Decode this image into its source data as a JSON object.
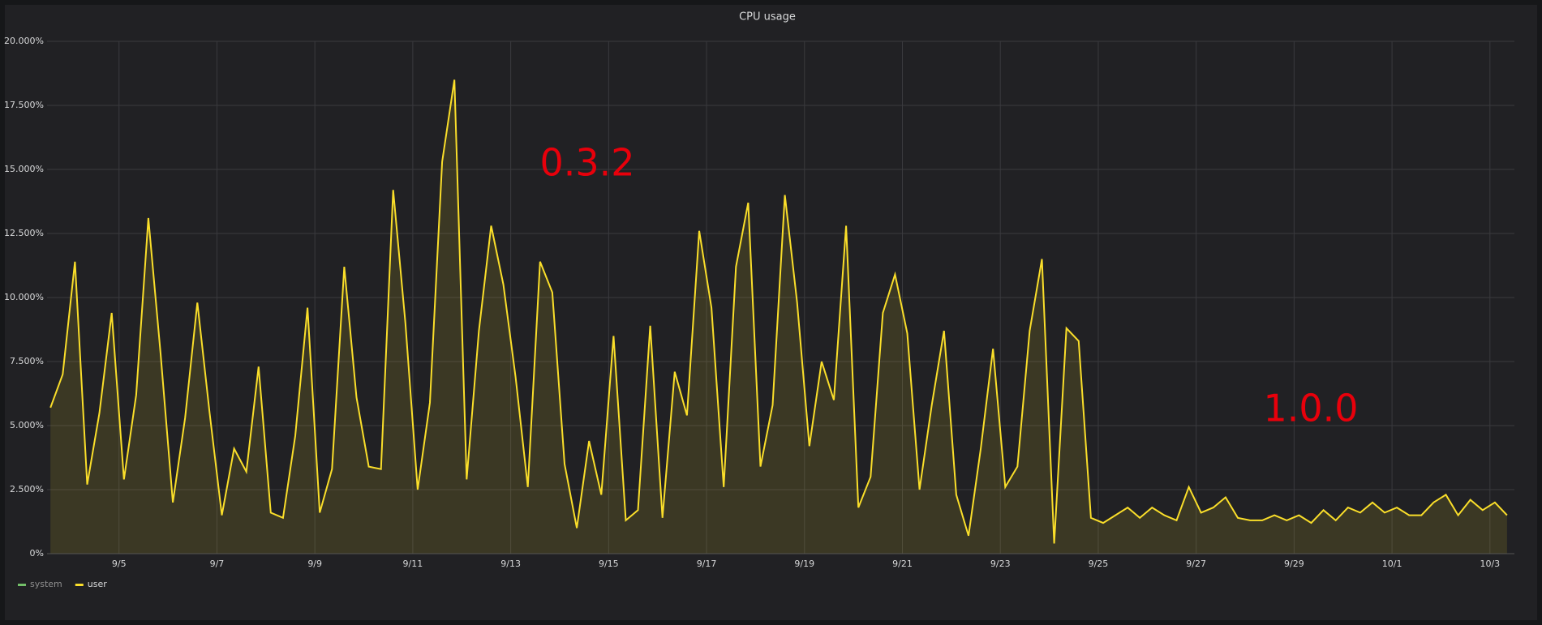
{
  "chart_data": {
    "type": "line",
    "title": "CPU usage",
    "annotations": [
      "0.3.2",
      "1.0.0"
    ],
    "xlim": [
      3.53,
      33.5
    ],
    "xticks": [
      {
        "value": 5,
        "label": "9/5"
      },
      {
        "value": 7,
        "label": "9/7"
      },
      {
        "value": 9,
        "label": "9/9"
      },
      {
        "value": 11,
        "label": "9/11"
      },
      {
        "value": 13,
        "label": "9/13"
      },
      {
        "value": 15,
        "label": "9/15"
      },
      {
        "value": 17,
        "label": "9/17"
      },
      {
        "value": 19,
        "label": "9/19"
      },
      {
        "value": 21,
        "label": "9/21"
      },
      {
        "value": 23,
        "label": "9/23"
      },
      {
        "value": 25,
        "label": "9/25"
      },
      {
        "value": 27,
        "label": "9/27"
      },
      {
        "value": 29,
        "label": "9/29"
      },
      {
        "value": 31,
        "label": "10/1"
      },
      {
        "value": 33,
        "label": "10/3"
      }
    ],
    "ylim": [
      0,
      20
    ],
    "yticks": [
      {
        "value": 0,
        "label": "0%"
      },
      {
        "value": 2.5,
        "label": "2.500%"
      },
      {
        "value": 5,
        "label": "5.000%"
      },
      {
        "value": 7.5,
        "label": "7.500%"
      },
      {
        "value": 10,
        "label": "10.000%"
      },
      {
        "value": 12.5,
        "label": "12.500%"
      },
      {
        "value": 15,
        "label": "15.000%"
      },
      {
        "value": 17.5,
        "label": "17.500%"
      },
      {
        "value": 20,
        "label": "20.000%"
      }
    ],
    "grid": true,
    "x": [
      3.6,
      3.85,
      4.1,
      4.35,
      4.6,
      4.85,
      5.1,
      5.35,
      5.6,
      5.85,
      6.1,
      6.35,
      6.6,
      6.85,
      7.1,
      7.35,
      7.6,
      7.85,
      8.1,
      8.35,
      8.6,
      8.85,
      9.1,
      9.35,
      9.6,
      9.85,
      10.1,
      10.35,
      10.6,
      10.85,
      11.1,
      11.35,
      11.6,
      11.85,
      12.1,
      12.35,
      12.6,
      12.85,
      13.1,
      13.35,
      13.6,
      13.85,
      14.1,
      14.35,
      14.6,
      14.85,
      15.1,
      15.35,
      15.6,
      15.85,
      16.1,
      16.35,
      16.6,
      16.85,
      17.1,
      17.35,
      17.6,
      17.85,
      18.1,
      18.35,
      18.6,
      18.85,
      19.1,
      19.35,
      19.6,
      19.85,
      20.1,
      20.35,
      20.6,
      20.85,
      21.1,
      21.35,
      21.6,
      21.85,
      22.1,
      22.35,
      22.6,
      22.85,
      23.1,
      23.35,
      23.6,
      23.85,
      24.1,
      24.35,
      24.6,
      24.85,
      25.1,
      25.35,
      25.6,
      25.85,
      26.1,
      26.35,
      26.6,
      26.85,
      27.1,
      27.35,
      27.6,
      27.85,
      28.1,
      28.35,
      28.6,
      28.85,
      29.1,
      29.35,
      29.6,
      29.85,
      30.1,
      30.35,
      30.6,
      30.85,
      31.1,
      31.35,
      31.6,
      31.85,
      32.1,
      32.35,
      32.6,
      32.85,
      33.1,
      33.35
    ],
    "series": [
      {
        "name": "system",
        "color": "#73bf69",
        "hidden": true,
        "values": [
          null,
          null,
          null,
          null,
          null,
          null,
          null,
          null,
          null,
          null,
          null,
          null,
          null,
          null,
          null,
          null,
          null,
          null,
          null,
          null,
          null,
          null,
          null,
          null,
          null,
          null,
          null,
          null,
          null,
          null,
          null,
          null,
          null,
          null,
          null,
          null,
          null,
          null,
          null,
          null,
          null,
          null,
          null,
          null,
          null,
          null,
          null,
          null,
          null,
          null,
          null,
          null,
          null,
          null,
          null,
          null,
          null,
          null,
          null,
          null,
          null,
          null,
          null,
          null,
          null,
          null,
          null,
          null,
          null,
          null,
          null,
          null,
          null,
          null,
          null,
          null,
          null,
          null,
          null,
          null,
          null,
          null,
          null,
          null,
          null,
          null,
          null,
          null,
          null,
          null,
          null,
          null,
          null,
          null,
          null,
          null,
          null,
          null,
          null,
          null,
          null,
          null,
          null,
          null,
          null,
          null,
          null,
          null,
          null,
          null,
          null,
          null,
          null,
          null,
          null,
          null,
          null,
          null,
          null,
          null
        ]
      },
      {
        "name": "user",
        "color": "#fade2a",
        "values": [
          5.7,
          7.0,
          11.4,
          2.7,
          5.5,
          9.4,
          2.9,
          6.2,
          13.1,
          7.8,
          2.0,
          5.3,
          9.8,
          5.5,
          1.5,
          4.1,
          3.2,
          7.3,
          1.6,
          1.4,
          4.6,
          9.6,
          1.6,
          3.3,
          11.2,
          6.1,
          3.4,
          3.3,
          14.2,
          9.0,
          2.5,
          5.9,
          15.3,
          18.5,
          2.9,
          8.7,
          12.8,
          10.5,
          6.9,
          2.6,
          11.4,
          10.2,
          3.5,
          1.0,
          4.4,
          2.3,
          8.5,
          1.3,
          1.7,
          8.9,
          1.4,
          7.1,
          5.4,
          12.6,
          9.6,
          2.6,
          11.2,
          13.7,
          3.4,
          5.8,
          14.0,
          9.8,
          4.2,
          7.5,
          6.0,
          12.8,
          1.8,
          3.0,
          9.4,
          10.9,
          8.6,
          2.5,
          5.8,
          8.7,
          2.3,
          0.7,
          4.1,
          8.0,
          2.6,
          3.4,
          8.7,
          11.5,
          0.4,
          8.8,
          8.3,
          1.4,
          1.2,
          1.5,
          1.8,
          1.4,
          1.8,
          1.5,
          1.3,
          2.6,
          1.6,
          1.8,
          2.2,
          1.4,
          1.3,
          1.3,
          1.5,
          1.3,
          1.5,
          1.2,
          1.7,
          1.3,
          1.8,
          1.6,
          2.0,
          1.6,
          1.8,
          1.5,
          1.5,
          2.0,
          2.3,
          1.5,
          2.1,
          1.7,
          2.0,
          1.5
        ]
      }
    ]
  }
}
